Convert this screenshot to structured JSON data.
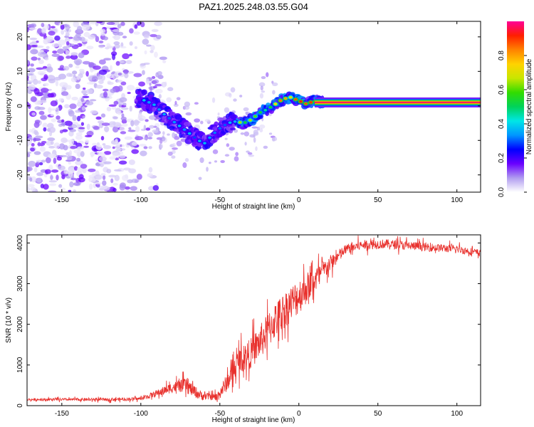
{
  "title": "PAZ1.2025.248.03.55.G04",
  "chart_data": [
    {
      "type": "heatmap",
      "name": "spectrogram",
      "xlabel": "Height of straight line (km)",
      "ylabel": "Frequency (Hz)",
      "xlim": [
        -172,
        115
      ],
      "ylim": [
        -25,
        24.5
      ],
      "xticks": [
        -150,
        -100,
        -50,
        0,
        50,
        100
      ],
      "yticks": [
        -20,
        -10,
        0,
        10,
        20
      ],
      "colorbar": {
        "label": "Normalized spectral amplitude",
        "range": [
          0,
          1
        ],
        "ticks": [
          0.0,
          0.2,
          0.4,
          0.6,
          0.8
        ],
        "colors": [
          "#ffffff",
          "#b09cf0",
          "#6a00ff",
          "#0000ff",
          "#0096ff",
          "#00e6e6",
          "#00d25a",
          "#32dc00",
          "#c8e600",
          "#ffd200",
          "#ff8200",
          "#ff1e00",
          "#ff0096"
        ]
      },
      "signal_trace": [
        {
          "x": -100,
          "y": 2.0
        },
        {
          "x": -92,
          "y": 0.5
        },
        {
          "x": -85,
          "y": -2.5
        },
        {
          "x": -78,
          "y": -5.0
        },
        {
          "x": -72,
          "y": -7.0
        },
        {
          "x": -65,
          "y": -9.5
        },
        {
          "x": -60,
          "y": -11.0
        },
        {
          "x": -55,
          "y": -8.5
        },
        {
          "x": -50,
          "y": -6.5
        },
        {
          "x": -45,
          "y": -5.0
        },
        {
          "x": -40,
          "y": -4.5
        },
        {
          "x": -35,
          "y": -5.0
        },
        {
          "x": -30,
          "y": -4.0
        },
        {
          "x": -25,
          "y": -2.0
        },
        {
          "x": -20,
          "y": -1.0
        },
        {
          "x": -15,
          "y": 0.5
        },
        {
          "x": -10,
          "y": 2.0
        },
        {
          "x": -5,
          "y": 2.5
        },
        {
          "x": 0,
          "y": 1.5
        },
        {
          "x": 5,
          "y": 0.5
        },
        {
          "x": 10,
          "y": 1.5
        },
        {
          "x": 15,
          "y": 1.0
        },
        {
          "x": 30,
          "y": 1.0
        },
        {
          "x": 60,
          "y": 1.0
        },
        {
          "x": 90,
          "y": 1.0
        },
        {
          "x": 115,
          "y": 1.0
        }
      ],
      "noise_region_x": [
        -172,
        -95
      ],
      "noise_region_y": [
        -25,
        24.5
      ]
    },
    {
      "type": "line",
      "name": "snr",
      "xlabel": "Height of straight line (km)",
      "ylabel": "SNR (10 * v/v)",
      "xlim": [
        -172,
        115
      ],
      "ylim": [
        0,
        4200
      ],
      "xticks": [
        -150,
        -100,
        -50,
        0,
        50,
        100
      ],
      "yticks": [
        0,
        1000,
        2000,
        3000,
        4000
      ],
      "color": "#e8302c",
      "envelope": [
        {
          "x": -172,
          "y": 150
        },
        {
          "x": -120,
          "y": 150
        },
        {
          "x": -100,
          "y": 170
        },
        {
          "x": -90,
          "y": 300
        },
        {
          "x": -80,
          "y": 450
        },
        {
          "x": -72,
          "y": 500
        },
        {
          "x": -62,
          "y": 250
        },
        {
          "x": -52,
          "y": 200
        },
        {
          "x": -45,
          "y": 600
        },
        {
          "x": -38,
          "y": 1100
        },
        {
          "x": -30,
          "y": 1300
        },
        {
          "x": -22,
          "y": 1700
        },
        {
          "x": -15,
          "y": 2100
        },
        {
          "x": -8,
          "y": 2400
        },
        {
          "x": 0,
          "y": 2700
        },
        {
          "x": 10,
          "y": 3100
        },
        {
          "x": 20,
          "y": 3500
        },
        {
          "x": 30,
          "y": 3850
        },
        {
          "x": 40,
          "y": 3950
        },
        {
          "x": 55,
          "y": 3980
        },
        {
          "x": 80,
          "y": 3900
        },
        {
          "x": 100,
          "y": 3850
        },
        {
          "x": 115,
          "y": 3750
        }
      ],
      "noise_amplitude": [
        {
          "x": -172,
          "a": 60
        },
        {
          "x": -100,
          "a": 80
        },
        {
          "x": -70,
          "a": 350
        },
        {
          "x": -55,
          "a": 150
        },
        {
          "x": -40,
          "a": 600
        },
        {
          "x": -20,
          "a": 900
        },
        {
          "x": 0,
          "a": 900
        },
        {
          "x": 15,
          "a": 500
        },
        {
          "x": 30,
          "a": 250
        },
        {
          "x": 115,
          "a": 180
        }
      ]
    }
  ]
}
